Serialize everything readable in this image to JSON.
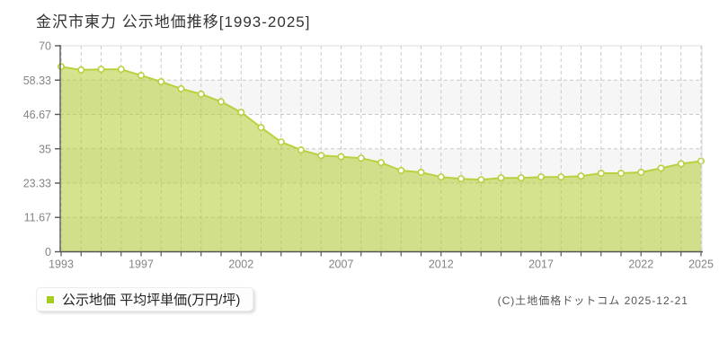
{
  "chart": {
    "title": "金沢市東力 公示地価推移[1993-2025]"
  },
  "legend": {
    "label": "公示地価 平均坪単価(万円/坪)"
  },
  "footer": {
    "copyright": "(C)土地価格ドットコム 2025-12-21"
  },
  "colors": {
    "line": "#b7d23e",
    "fill": "rgba(179,204,51,0.55)",
    "marker_fill": "#ffffff",
    "grid": "#c9c9c9",
    "band": "#f6f6f6",
    "border": "#dddddd",
    "axis": "#555555",
    "tick_label": "#848484",
    "legend_swatch": "#a6cc20"
  },
  "chart_data": {
    "type": "area",
    "title": "金沢市東力 公示地価推移[1993-2025]",
    "series_name": "公示地価 平均坪単価(万円/坪)",
    "x": [
      1993,
      1994,
      1995,
      1996,
      1997,
      1998,
      1999,
      2000,
      2001,
      2002,
      2003,
      2004,
      2005,
      2006,
      2007,
      2008,
      2009,
      2010,
      2011,
      2012,
      2013,
      2014,
      2015,
      2016,
      2017,
      2018,
      2019,
      2020,
      2021,
      2022,
      2023,
      2024,
      2025
    ],
    "values": [
      62.9,
      61.8,
      62.0,
      62.0,
      59.9,
      57.8,
      55.4,
      53.6,
      51.0,
      47.4,
      42.2,
      37.3,
      34.6,
      32.7,
      32.3,
      31.8,
      30.3,
      27.6,
      27.0,
      25.4,
      24.8,
      24.5,
      25.1,
      25.1,
      25.4,
      25.4,
      25.7,
      26.7,
      26.7,
      27.0,
      28.4,
      29.9,
      30.8
    ],
    "xlabel": "",
    "ylabel": "万円/坪",
    "ylim": [
      0,
      70
    ],
    "y_ticks": [
      0,
      11.67,
      23.33,
      35,
      46.67,
      58.33,
      70
    ],
    "y_tick_labels": [
      "0",
      "11.67",
      "23.33",
      "35",
      "46.67",
      "58.33",
      "70"
    ],
    "x_tick_labels": [
      "1993",
      "1997",
      "2002",
      "2007",
      "2012",
      "2017",
      "2022",
      "2025"
    ],
    "grid": true,
    "legend_position": "bottom-left"
  }
}
